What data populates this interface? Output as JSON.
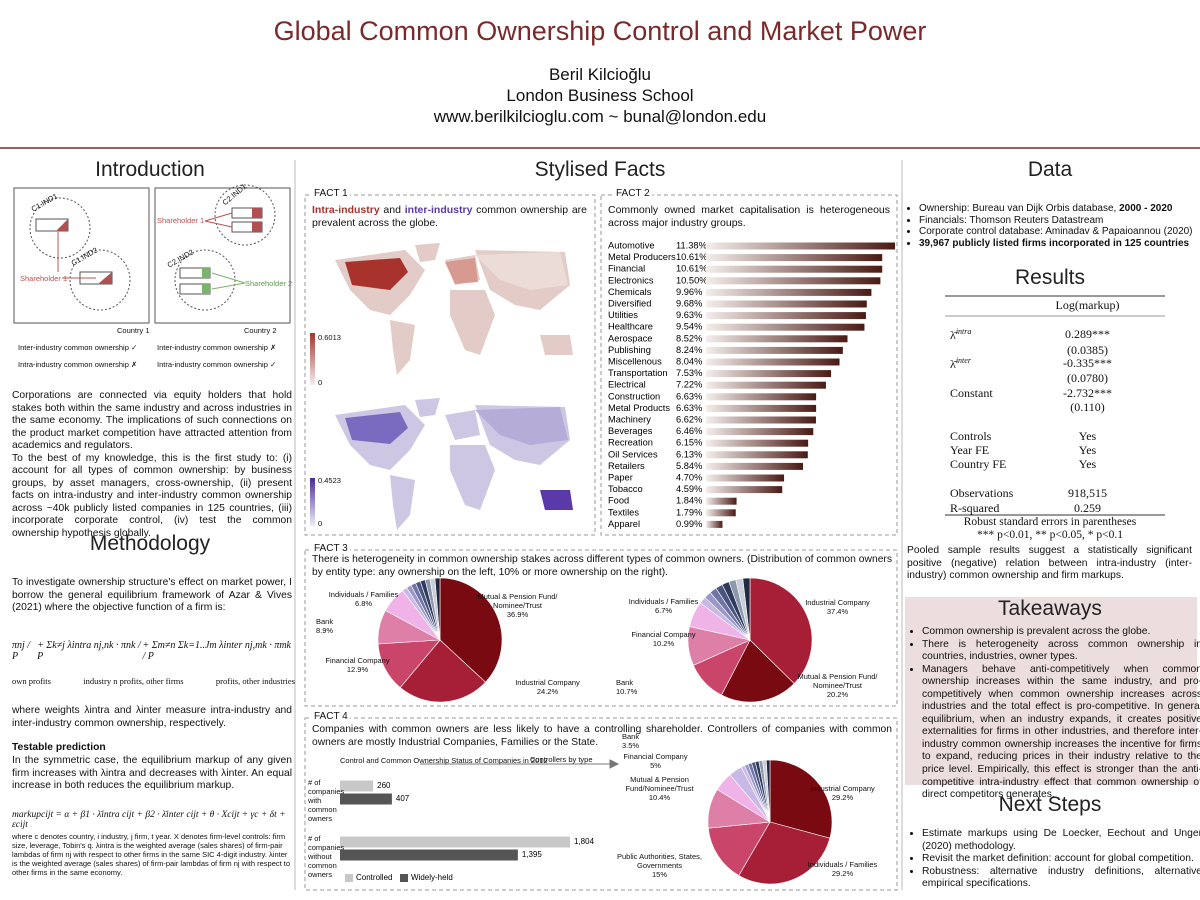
{
  "header": {
    "title": "Global Common Ownership Control and Market Power",
    "author": "Beril Kilcioğlu",
    "institution": "London Business School",
    "contact": "www.berilkilcioglu.com ~ bunal@london.edu"
  },
  "introduction": {
    "heading": "Introduction",
    "diagram": {
      "c1ind1": "C1.IND1",
      "c1ind2": "C1.IND2",
      "c2ind1": "C2.IND1",
      "c2ind2": "C2.IND2",
      "sh1a": "Shareholder 1",
      "sh1b": "Shareholder 1",
      "sh2": "Shareholder 2",
      "country1": "Country 1",
      "country2": "Country 2",
      "leg1": "Inter-industry common ownership ✓",
      "leg2": "Intra-industry common ownership ✗",
      "leg3": "Inter-industry common ownership ✗",
      "leg4": "Intra-industry common ownership ✓"
    },
    "paragraphs": [
      "Corporations are connected via equity holders that hold stakes both within the same industry and across industries in the same economy. The implications of such connections on the product market competition have attracted attention  from academics and regulators.",
      "To the best of my knowledge, this is the first study to: (i) account for all types of common ownership: by business groups, by asset managers, cross-ownership, (ii) present facts on intra-industry and inter-industry common ownership across ~40k publicly listed companies in 125 countries, (iii) incorporate corporate control, (iv) test the common ownership hypothesis globally."
    ]
  },
  "methodology": {
    "heading": "Methodology",
    "intro": "To investigate ownership structure's effect on market power, I borrow the general equilibrium framework of Azar & Vives (2021) where the objective function of a firm is:",
    "eq1": [
      "πnj / P",
      "+  Σk≠j λintra nj,nk · πnk / P",
      "+  Σm≠n Σk=1..Jm λinter nj,mk · πmk / P"
    ],
    "eq1_under": [
      "own profits",
      "industry n profits, other firms",
      "profits, other industries"
    ],
    "weights": "where weights λintra and λinter measure intra-industry and inter-industry common ownership, respectively.",
    "prediction_heading": "Testable prediction",
    "prediction": "In the symmetric case, the equilibrium markup of any given firm increases with λintra and decreases with λinter. An equal increase in both reduces the equilibrium markup.",
    "eq2": "markupcijt = α + β1 · λ̄intra cijt + β2 · λ̄inter cijt + θ · Xcijt + γc + δt + εcijt",
    "footnote": "where c denotes country, i industry, j firm, t year. X denotes firm-level controls: firm size, leverage, Tobin's q. λintra is the weighted average (sales shares) of firm-pair lambdas of firm nj with respect to other firms in the same SIC 4-digit industry. λinter is the weighted average (sales shares) of firm-pair lambdas of firm nj with respect to other firms in the same economy."
  },
  "stylised_facts": {
    "heading": "Stylised Facts",
    "fact1": {
      "label": "FACT 1",
      "text_a": "Intra-industry",
      "text_and": " and ",
      "text_b": "inter-industry",
      "text_rest": " common ownership are prevalent across the globe.",
      "map1_max": "0.6013",
      "map1_min": "0",
      "map2_max": "0.4523",
      "map2_min": "0"
    },
    "fact2": {
      "label": "FACT 2",
      "text": "Commonly owned market capitalisation is heterogeneous across major industry groups.",
      "categories": [
        "Automotive",
        "Metal Producers",
        "Financial",
        "Electronics",
        "Chemicals",
        "Diversified",
        "Utilities",
        "Healthcare",
        "Aerospace",
        "Publishing",
        "Miscellenous",
        "Transportation",
        "Electrical",
        "Construction",
        "Metal Products",
        "Machinery",
        "Beverages",
        "Recreation",
        "Oil Services",
        "Retailers",
        "Paper",
        "Tobacco",
        "Food",
        "Textiles",
        "Apparel"
      ],
      "values": [
        11.38,
        10.61,
        10.61,
        10.5,
        9.96,
        9.68,
        9.63,
        9.54,
        8.52,
        8.24,
        8.04,
        7.53,
        7.22,
        6.63,
        6.63,
        6.62,
        6.46,
        6.15,
        6.13,
        5.84,
        4.7,
        4.59,
        1.84,
        1.79,
        0.99
      ],
      "value_labels": [
        "11.38%",
        "10.61%",
        "10.61%",
        "10.50%",
        "9.96%",
        "9.68%",
        "9.63%",
        "9.54%",
        "8.52%",
        "8.24%",
        "8.04%",
        "7.53%",
        "7.22%",
        "6.63%",
        "6.63%",
        "6.62%",
        "6.46%",
        "6.15%",
        "6.13%",
        "5.84%",
        "4.70%",
        "4.59%",
        "1.84%",
        "1.79%",
        "0.99%"
      ]
    },
    "fact3": {
      "label": "FACT 3",
      "text": "There is heterogeneity in common ownership stakes across different types of common owners. (Distribution of common owners by entity type: any ownership on the left, 10% or more ownership on the right).",
      "pie_left": [
        {
          "name": "Mutual & Pension Fund/ Nominee/Trust",
          "value": 36.9,
          "value_label": "36.9%"
        },
        {
          "name": "Industrial Company",
          "value": 24.2,
          "value_label": "24.2%"
        },
        {
          "name": "Financial Company",
          "value": 12.9,
          "value_label": "12.9%"
        },
        {
          "name": "Bank",
          "value": 8.9,
          "value_label": "8.9%"
        },
        {
          "name": "Individuals / Families",
          "value": 6.8,
          "value_label": "6.8%"
        }
      ],
      "pie_right": [
        {
          "name": "Industrial Company",
          "value": 37.4,
          "value_label": "37.4%"
        },
        {
          "name": "Mutual & Pension Fund/ Nominee/Trust",
          "value": 20.2,
          "value_label": "20.2%"
        },
        {
          "name": "Bank",
          "value": 10.7,
          "value_label": "10.7%"
        },
        {
          "name": "Financial Company",
          "value": 10.2,
          "value_label": "10.2%"
        },
        {
          "name": "Individuals / Families",
          "value": 6.7,
          "value_label": "6.7%"
        }
      ]
    },
    "fact4": {
      "label": "FACT 4",
      "text": "Companies with common owners are less likely to have a controlling shareholder. Controllers of companies with common owners are mostly Industrial Companies, Families or the State.",
      "bar_title": "Control and Common Ownership Status of Companies in 2012",
      "groups": [
        "# of companies with common owners",
        "# of companies without common owners"
      ],
      "series": [
        {
          "name": "Controlled",
          "color": "#c8c8c8",
          "values": [
            260,
            1804
          ],
          "value_labels": [
            "260",
            "1,804"
          ]
        },
        {
          "name": "Widely-held",
          "color": "#555555",
          "values": [
            407,
            1395
          ],
          "value_labels": [
            "407",
            "1,395"
          ]
        }
      ],
      "arrow_label": "Controllers by type",
      "pie": [
        {
          "name": "Industrial Company",
          "value": 29.2,
          "value_label": "29.2%"
        },
        {
          "name": "Individuals / Families",
          "value": 29.2,
          "value_label": "29.2%"
        },
        {
          "name": "Public Authorities, States, Governments",
          "value": 15,
          "value_label": "15%"
        },
        {
          "name": "Mutual & Pension Fund/Nominee/Trust",
          "value": 10.4,
          "value_label": "10.4%"
        },
        {
          "name": "Financial Company",
          "value": 5,
          "value_label": "5%"
        },
        {
          "name": "Bank",
          "value": 3.5,
          "value_label": "3.5%"
        }
      ]
    }
  },
  "data": {
    "heading": "Data",
    "bullets": [
      [
        "Ownership: Bureau van Dijk Orbis database, ",
        "2000 - 2020"
      ],
      [
        "Financials: Thomson Reuters Datastream",
        ""
      ],
      [
        "Corporate control database: Aminadav & Papaioannou (2020)",
        ""
      ],
      [
        "",
        "39,967 publicly listed firms incorporated in 125 countries"
      ]
    ]
  },
  "results": {
    "heading": "Results",
    "column": "Log(markup)",
    "rows": [
      {
        "label": "λ̄",
        "sup": "intra",
        "value": "0.289***"
      },
      {
        "value": "(0.0385)"
      },
      {
        "label": "λ̄",
        "sup": "inter",
        "value": "-0.335***"
      },
      {
        "value": "(0.0780)"
      },
      {
        "label": "Constant",
        "value": "-2.732***"
      },
      {
        "value": "(0.110)"
      },
      {
        "label": "Controls",
        "value": "Yes"
      },
      {
        "label": "Year FE",
        "value": "Yes"
      },
      {
        "label": "Country FE",
        "value": "Yes"
      },
      {
        "label": "Observations",
        "value": "918,515"
      },
      {
        "label": "R-squared",
        "value": "0.259"
      }
    ],
    "note1": "Robust standard errors in parentheses",
    "note2": "*** p<0.01, ** p<0.05, * p<0.1",
    "summary": "Pooled sample results suggest a statistically significant positive (negative) relation between intra-industry (inter-industry) common ownership and firm markups."
  },
  "takeaways": {
    "heading": "Takeaways",
    "bullets": [
      "Common ownership is prevalent across the globe.",
      "There is heterogeneity across common ownership in countries, industries, owner types.",
      "Managers behave anti-competitively when common ownership increases within the same industry, and pro-competitively when common ownership increases across industries and the total effect is pro-competitive. In general equilibrium, when an industry expands, it creates positive externalities for firms in other industries, and therefore inter-industry common ownership increases the incentive for firms to expand, reducing prices in their industry relative to the price level. Empirically, this effect is stronger than the anti-competitive intra-industry effect that common ownership of direct competitors generates."
    ]
  },
  "next_steps": {
    "heading": "Next Steps",
    "bullets": [
      "Estimate markups using De Loecker, Eechout and Unger (2020) methodology.",
      "Revisit the market definition: account for global competition.",
      "Robustness: alternative industry definitions, alternative empirical specifications."
    ]
  }
}
